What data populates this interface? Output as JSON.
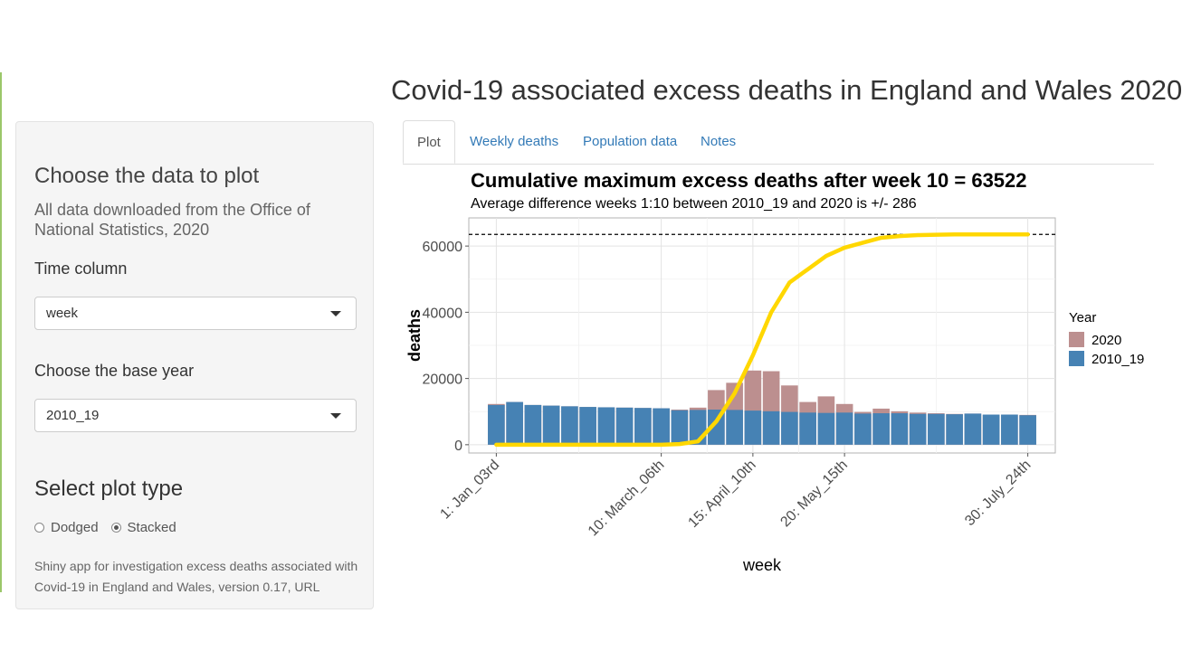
{
  "app": {
    "title": "Covid-19 associated excess deaths in England and Wales 2020"
  },
  "sidebar": {
    "heading": "Choose the data to plot",
    "description": "All data downloaded from the Office of National Statistics, 2020",
    "time_column": {
      "label": "Time column",
      "value": "week"
    },
    "base_year": {
      "label": "Choose the base year",
      "value": "2010_19"
    },
    "plot_type": {
      "label": "Select plot type",
      "options": [
        "Dodged",
        "Stacked"
      ],
      "selected": "Stacked"
    },
    "footer": "Shiny app for investigation excess deaths associated with Covid-19 in England and Wales, version 0.17, URL"
  },
  "tabs": [
    {
      "label": "Plot",
      "active": true
    },
    {
      "label": "Weekly deaths",
      "active": false
    },
    {
      "label": "Population data",
      "active": false
    },
    {
      "label": "Notes",
      "active": false
    }
  ],
  "chart_data": {
    "type": "bar",
    "title": "Cumulative maximum excess deaths after week 10 = 63522",
    "subtitle": "Average difference weeks 1:10 between 2010_19 and 2020 is +/- 286",
    "xlabel": "week",
    "ylabel": "deaths",
    "ylim": [
      -2500,
      68500
    ],
    "yticks": [
      0,
      20000,
      40000,
      60000
    ],
    "x": [
      1,
      2,
      3,
      4,
      5,
      6,
      7,
      8,
      9,
      10,
      11,
      12,
      13,
      14,
      15,
      16,
      17,
      18,
      19,
      20,
      21,
      22,
      23,
      24,
      25,
      26,
      27,
      28,
      29,
      30
    ],
    "xtick_labels": [
      {
        "week": 1,
        "label": "1: Jan_03rd"
      },
      {
        "week": 10,
        "label": "10: March_06th"
      },
      {
        "week": 15,
        "label": "15: April_10th"
      },
      {
        "week": 20,
        "label": "20: May_15th"
      },
      {
        "week": 30,
        "label": "30: July_24th"
      }
    ],
    "legend": {
      "title": "Year",
      "position": "right"
    },
    "series": [
      {
        "name": "2020",
        "color": "#bc8f8f",
        "values": [
          12300,
          12900,
          12000,
          11800,
          11600,
          11400,
          11300,
          11200,
          11100,
          11000,
          10600,
          11200,
          16500,
          18700,
          22400,
          22200,
          17900,
          12900,
          14600,
          12300,
          9900,
          10900,
          10100,
          9700,
          9500,
          9300,
          9400,
          9000,
          9100,
          9000
        ]
      },
      {
        "name": "2010_19",
        "color": "#4682b4",
        "values": [
          12000,
          12900,
          12000,
          11800,
          11600,
          11400,
          11300,
          11200,
          11100,
          11000,
          10400,
          10500,
          10600,
          10500,
          10300,
          10100,
          9900,
          9700,
          9600,
          9700,
          9400,
          9500,
          9500,
          9300,
          9300,
          9200,
          9400,
          9100,
          9100,
          8900
        ]
      }
    ],
    "cumulative_line": {
      "color": "#ffd700",
      "values": [
        0,
        0,
        0,
        0,
        0,
        0,
        0,
        0,
        0,
        0,
        200,
        1000,
        7000,
        15500,
        27000,
        40000,
        49000,
        53000,
        57000,
        59500,
        61000,
        62500,
        63000,
        63300,
        63400,
        63500,
        63500,
        63500,
        63522,
        63522
      ]
    },
    "reference_line": {
      "value": 63522,
      "style": "dashed"
    }
  }
}
